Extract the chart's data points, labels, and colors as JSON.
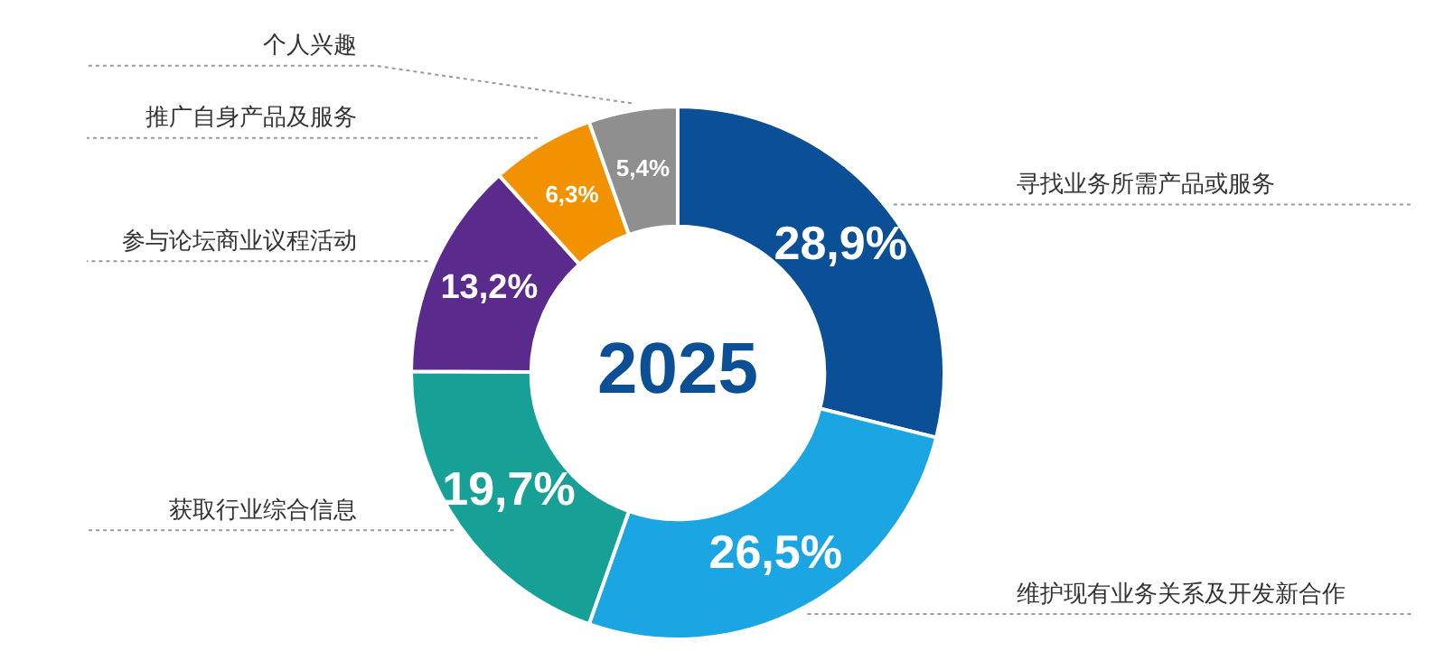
{
  "chart_data": {
    "type": "donut",
    "title": "2025",
    "categories": [
      "寻找业务所需产品或服务",
      "维护现有业务关系及开发新合作",
      "获取行业综合信息",
      "参与论坛商业议程活动",
      "推广自身产品及服务",
      "个人兴趣"
    ],
    "values": [
      28.9,
      26.5,
      19.7,
      13.2,
      6.3,
      5.4
    ],
    "value_labels": [
      "28,9%",
      "26,5%",
      "19,7%",
      "13,2%",
      "6,3%",
      "5,4%"
    ],
    "colors": [
      "#0b4f96",
      "#1ba6e3",
      "#17a196",
      "#5a2a8c",
      "#f39200",
      "#8f8f8f"
    ]
  }
}
